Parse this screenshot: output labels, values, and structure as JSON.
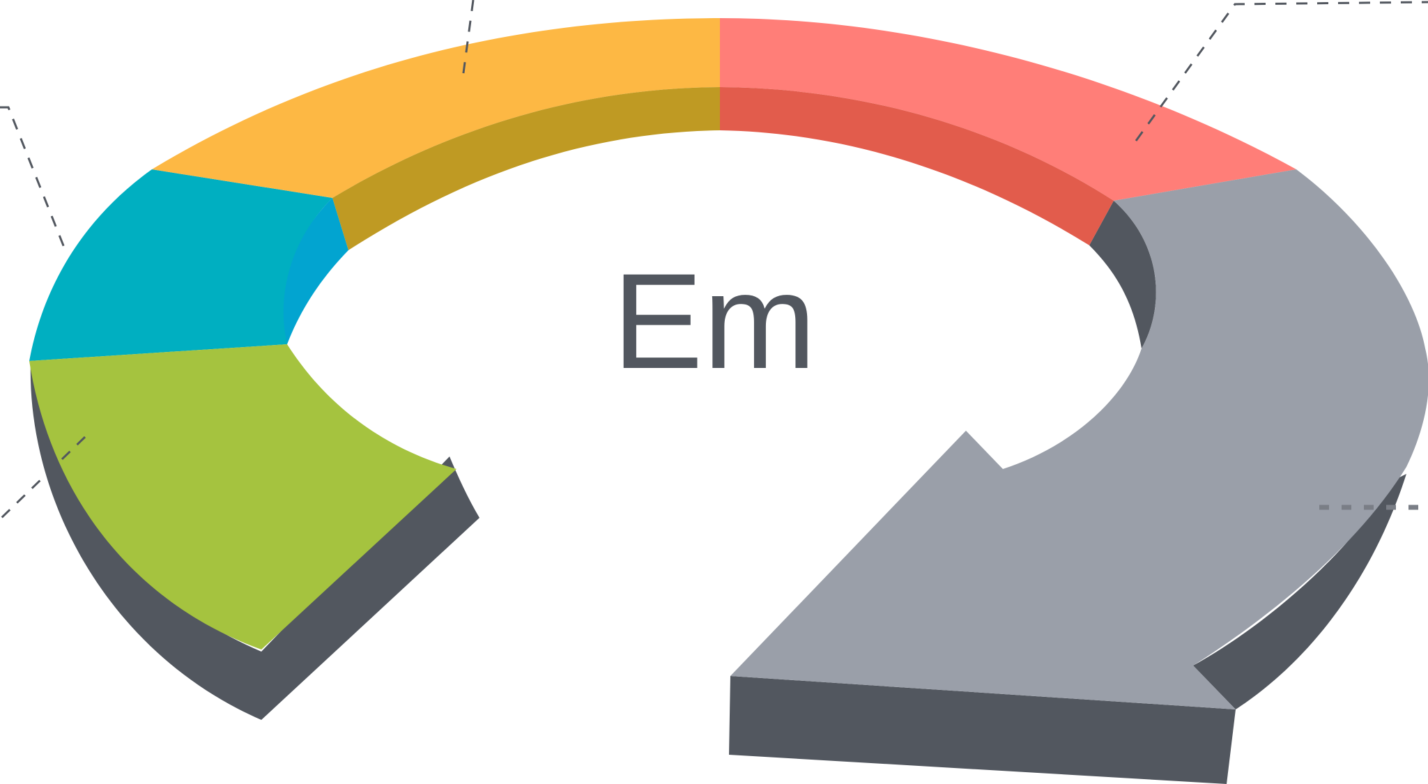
{
  "diagram": {
    "center_label": "Em",
    "segments": [
      {
        "id": "yellow",
        "color": "#FDB844",
        "inner_color": "#BF9A23"
      },
      {
        "id": "red",
        "color": "#FF7E78",
        "inner_color": "#E25C4C"
      },
      {
        "id": "teal",
        "color": "#00AFC1",
        "inner_color": "#02A4D0"
      },
      {
        "id": "green",
        "color": "#A5C33F"
      },
      {
        "id": "gray-arrow",
        "color": "#9A9FA9"
      }
    ],
    "shadow_color": "#52575F"
  }
}
